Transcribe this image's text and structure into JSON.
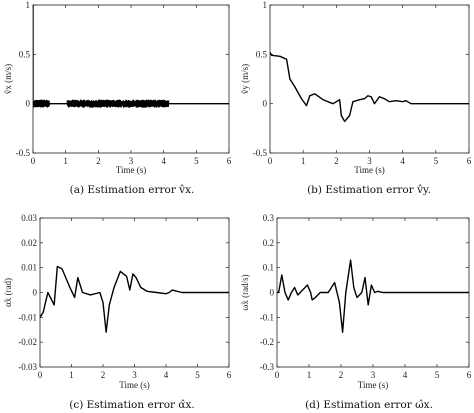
{
  "chart_data": [
    {
      "type": "line",
      "caption": "(a) Estimation error v̂x.",
      "xlabel": "Time (s)",
      "ylabel": "ṽx (m/s)",
      "xlim": [
        0,
        6
      ],
      "ylim": [
        -0.5,
        1
      ],
      "xticks": [
        "0",
        "1",
        "2",
        "3",
        "4",
        "5",
        "6"
      ],
      "yticks": [
        "-0.5",
        "0",
        "0.5",
        "1"
      ],
      "grid": false,
      "series": [
        {
          "x": [
            0,
            0.0,
            0.02,
            0.5,
            0.5,
            0.55,
            1.05,
            1.05,
            1.1,
            4.15,
            4.2,
            6
          ],
          "y": [
            1.0,
            0.0,
            0.0,
            0.0,
            0.0,
            0.0,
            0.0,
            0.0,
            0.0,
            0.0,
            0.0,
            0.0
          ],
          "noise_bands": [
            {
              "x_start": 0.02,
              "x_end": 0.5,
              "amplitude": 0.035
            },
            {
              "x_start": 1.05,
              "x_end": 4.15,
              "amplitude": 0.035
            }
          ]
        }
      ]
    },
    {
      "type": "line",
      "caption": "(b) Estimation error v̂y.",
      "xlabel": "Time (s)",
      "ylabel": "ṽy (m/s)",
      "xlim": [
        0,
        6
      ],
      "ylim": [
        -0.5,
        1
      ],
      "xticks": [
        "0",
        "1",
        "2",
        "3",
        "4",
        "5",
        "6"
      ],
      "yticks": [
        "-0.5",
        "0",
        "0.5",
        "1"
      ],
      "grid": false,
      "series": [
        {
          "x": [
            0,
            0.05,
            0.3,
            0.5,
            0.55,
            0.6,
            0.75,
            0.95,
            1.1,
            1.2,
            1.35,
            1.6,
            1.9,
            2.1,
            2.15,
            2.25,
            2.4,
            2.5,
            2.7,
            2.85,
            2.95,
            3.05,
            3.15,
            3.3,
            3.45,
            3.6,
            3.8,
            4.0,
            4.1,
            4.25,
            4.6,
            5.0,
            6.0
          ],
          "y": [
            0.52,
            0.49,
            0.48,
            0.45,
            0.35,
            0.25,
            0.17,
            0.05,
            -0.02,
            0.08,
            0.1,
            0.04,
            0.0,
            0.04,
            -0.12,
            -0.18,
            -0.12,
            0.02,
            0.04,
            0.05,
            0.08,
            0.07,
            0.0,
            0.07,
            0.05,
            0.02,
            0.03,
            0.02,
            0.03,
            0.0,
            0.0,
            0.0,
            0.0
          ]
        }
      ]
    },
    {
      "type": "line",
      "caption": "(c) Estimation error α̂x.",
      "xlabel": "Time (s)",
      "ylabel": "α̃x (rad)",
      "xlim": [
        0,
        6
      ],
      "ylim": [
        -0.03,
        0.03
      ],
      "xticks": [
        "0",
        "1",
        "2",
        "3",
        "4",
        "5",
        "6"
      ],
      "yticks": [
        "-0.03",
        "-0.02",
        "-0.01",
        "0",
        "0.01",
        "0.02",
        "0.03"
      ],
      "grid": false,
      "series": [
        {
          "x": [
            0,
            0.1,
            0.25,
            0.45,
            0.55,
            0.7,
            0.95,
            1.1,
            1.2,
            1.35,
            1.6,
            1.9,
            2.0,
            2.1,
            2.2,
            2.35,
            2.55,
            2.75,
            2.85,
            2.95,
            3.05,
            3.2,
            3.4,
            3.7,
            4.0,
            4.1,
            4.2,
            4.5,
            5.0,
            6.0
          ],
          "y": [
            -0.01,
            -0.008,
            0.0,
            -0.005,
            0.0105,
            0.0095,
            0.002,
            -0.002,
            0.006,
            0.0,
            -0.001,
            0.0,
            -0.004,
            -0.016,
            -0.005,
            0.002,
            0.0085,
            0.0065,
            0.001,
            0.0075,
            0.006,
            0.002,
            0.0005,
            0.0,
            -0.0005,
            0.0,
            0.001,
            0.0,
            0.0,
            0.0
          ]
        }
      ]
    },
    {
      "type": "line",
      "caption": "(d) Estimation error ω̂x.",
      "xlabel": "Time (s)",
      "ylabel": "ω̃x (rad/s)",
      "xlim": [
        0,
        6
      ],
      "ylim": [
        -0.3,
        0.3
      ],
      "xticks": [
        "0",
        "1",
        "2",
        "3",
        "4",
        "5",
        "6"
      ],
      "yticks": [
        "-0.3",
        "-0.2",
        "-0.1",
        "0",
        "0.1",
        "0.2",
        "0.3"
      ],
      "grid": false,
      "series": [
        {
          "x": [
            0,
            0.05,
            0.15,
            0.25,
            0.35,
            0.45,
            0.55,
            0.65,
            0.8,
            0.95,
            1.05,
            1.1,
            1.2,
            1.35,
            1.6,
            1.8,
            1.95,
            2.05,
            2.15,
            2.3,
            2.4,
            2.5,
            2.65,
            2.75,
            2.85,
            2.95,
            3.05,
            3.15,
            3.3,
            3.6,
            4.0,
            4.5,
            5.0,
            6.0
          ],
          "y": [
            0.0,
            0.0,
            0.07,
            0.0,
            -0.03,
            0.0,
            0.02,
            -0.01,
            0.01,
            0.03,
            0.0,
            -0.03,
            -0.02,
            0.0,
            0.0,
            0.04,
            -0.04,
            -0.16,
            0.0,
            0.13,
            0.02,
            -0.02,
            0.0,
            0.06,
            -0.05,
            0.03,
            0.0,
            0.005,
            0.0,
            0.0,
            0.0,
            0.0,
            0.0,
            0.0
          ]
        }
      ]
    }
  ]
}
